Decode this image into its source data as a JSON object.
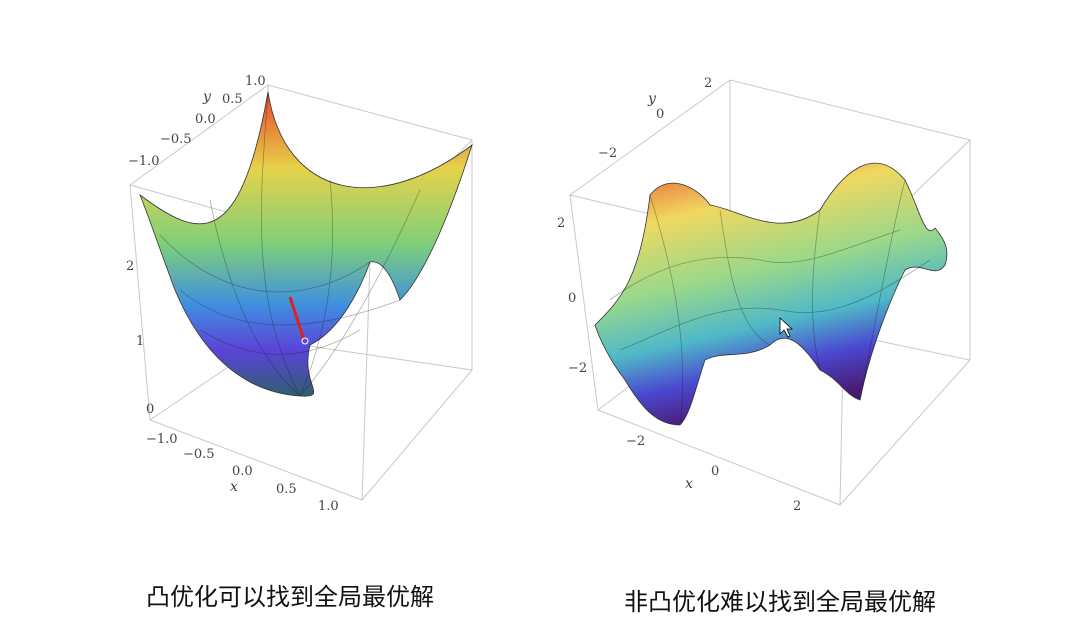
{
  "figures": [
    {
      "caption": "凸优化可以找到全局最优解",
      "x_axis_label": "x",
      "y_axis_label": "y",
      "x_ticks": [
        "−1.0",
        "−0.5",
        "0.0",
        "0.5",
        "1.0"
      ],
      "y_ticks": [
        "1.0",
        "0.5",
        "0.0",
        "−0.5",
        "−1.0"
      ],
      "z_ticks": [
        "2",
        "1",
        "0"
      ]
    },
    {
      "caption": "非凸优化难以找到全局最优解",
      "x_axis_label": "x",
      "y_axis_label": "y",
      "x_ticks": [
        "−2",
        "0",
        "2"
      ],
      "y_ticks": [
        "2",
        "0",
        "−2"
      ],
      "z_ticks": [
        "2",
        "0",
        "−2"
      ]
    }
  ]
}
